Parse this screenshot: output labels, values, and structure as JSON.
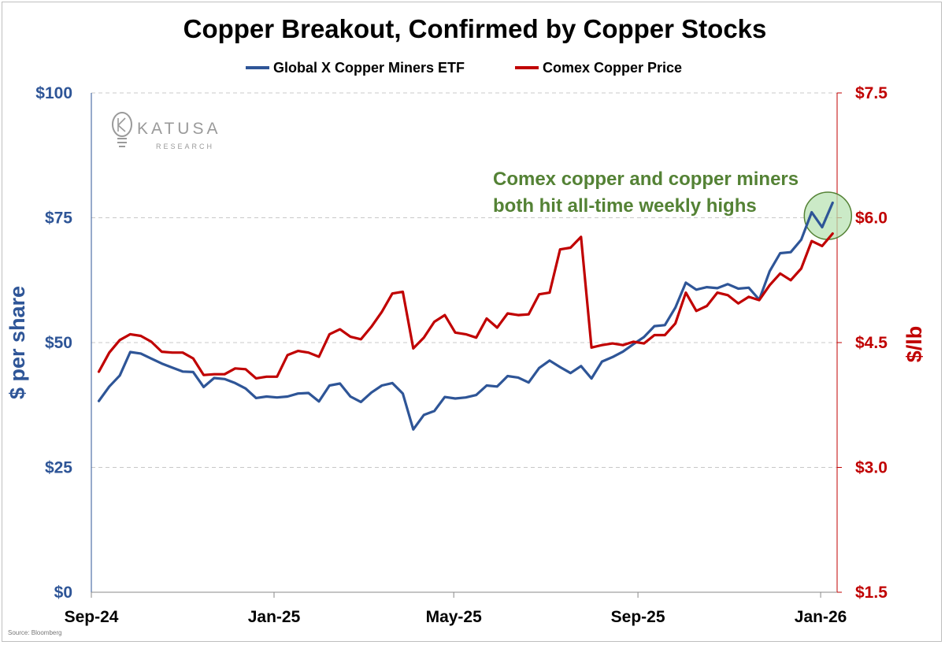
{
  "chart_data": {
    "type": "line",
    "title": "Copper Breakout, Confirmed by Copper Stocks",
    "legend": {
      "placement": "top-center",
      "entries": [
        "Global X Copper Miners ETF",
        "Comex Copper Price"
      ]
    },
    "x_axis": {
      "type": "weekly dates",
      "range": [
        "2024-09-06",
        "2026-01-09"
      ],
      "tick_labels": [
        "Sep-24",
        "Jan-25",
        "May-25",
        "Sep-25",
        "Jan-26"
      ],
      "tick_dates": [
        "2024-09-01",
        "2025-01-01",
        "2025-05-01",
        "2025-09-01",
        "2026-01-01"
      ]
    },
    "y_left": {
      "label": "$ per share",
      "range": [
        0,
        100
      ],
      "ticks": [
        0,
        25,
        50,
        75,
        100
      ],
      "tick_labels": [
        "$0",
        "$25",
        "$50",
        "$75",
        "$100"
      ]
    },
    "y_right": {
      "label": "$/lb",
      "range": [
        1.5,
        7.5
      ],
      "ticks": [
        1.5,
        3.0,
        4.5,
        6.0,
        7.5
      ],
      "tick_labels": [
        "$1.5",
        "$3.0",
        "$4.5",
        "$6.0",
        "$7.5"
      ]
    },
    "grid": "horizontal dashed",
    "series": [
      {
        "name": "Global X Copper Miners ETF",
        "axis": "left",
        "color": "#2e5597",
        "x": [
          "2024-09-06",
          "2024-09-13",
          "2024-09-20",
          "2024-09-27",
          "2024-10-04",
          "2024-10-11",
          "2024-10-18",
          "2024-10-25",
          "2024-11-01",
          "2024-11-08",
          "2024-11-15",
          "2024-11-22",
          "2024-11-29",
          "2024-12-06",
          "2024-12-13",
          "2024-12-20",
          "2024-12-27",
          "2025-01-03",
          "2025-01-10",
          "2025-01-17",
          "2025-01-24",
          "2025-01-31",
          "2025-02-07",
          "2025-02-14",
          "2025-02-21",
          "2025-02-28",
          "2025-03-07",
          "2025-03-14",
          "2025-03-21",
          "2025-03-28",
          "2025-04-04",
          "2025-04-11",
          "2025-04-18",
          "2025-04-25",
          "2025-05-02",
          "2025-05-09",
          "2025-05-16",
          "2025-05-23",
          "2025-05-30",
          "2025-06-06",
          "2025-06-13",
          "2025-06-20",
          "2025-06-27",
          "2025-07-04",
          "2025-07-11",
          "2025-07-18",
          "2025-07-25",
          "2025-08-01",
          "2025-08-08",
          "2025-08-15",
          "2025-08-22",
          "2025-08-29",
          "2025-09-05",
          "2025-09-12",
          "2025-09-19",
          "2025-09-26",
          "2025-10-03",
          "2025-10-10",
          "2025-10-17",
          "2025-10-24",
          "2025-10-31",
          "2025-11-07",
          "2025-11-14",
          "2025-11-21",
          "2025-11-28",
          "2025-12-05",
          "2025-12-12",
          "2025-12-19",
          "2025-12-26",
          "2026-01-02",
          "2026-01-09"
        ],
        "values": [
          38.3,
          41.2,
          43.4,
          48.1,
          47.8,
          46.8,
          45.8,
          45.0,
          44.2,
          44.1,
          41.1,
          42.9,
          42.7,
          41.9,
          40.8,
          38.9,
          39.2,
          39.0,
          39.2,
          39.8,
          39.9,
          38.2,
          41.4,
          41.8,
          39.2,
          38.1,
          40.0,
          41.4,
          41.9,
          39.8,
          32.6,
          35.5,
          36.3,
          39.1,
          38.8,
          39.0,
          39.5,
          41.4,
          41.2,
          43.3,
          43.0,
          42.0,
          44.9,
          46.4,
          45.1,
          43.9,
          45.3,
          42.8,
          46.2,
          47.1,
          48.2,
          49.7,
          51.1,
          53.3,
          53.5,
          57.0,
          62.0,
          60.6,
          61.1,
          60.9,
          61.7,
          60.8,
          61.0,
          58.6,
          64.3,
          67.9,
          68.1,
          70.6,
          76.1,
          73.1,
          78.0
        ]
      },
      {
        "name": "Comex Copper Price",
        "axis": "right",
        "color": "#c00000",
        "x": [
          "2024-09-06",
          "2024-09-13",
          "2024-09-20",
          "2024-09-27",
          "2024-10-04",
          "2024-10-11",
          "2024-10-18",
          "2024-10-25",
          "2024-11-01",
          "2024-11-08",
          "2024-11-15",
          "2024-11-22",
          "2024-11-29",
          "2024-12-06",
          "2024-12-13",
          "2024-12-20",
          "2024-12-27",
          "2025-01-03",
          "2025-01-10",
          "2025-01-17",
          "2025-01-24",
          "2025-01-31",
          "2025-02-07",
          "2025-02-14",
          "2025-02-21",
          "2025-02-28",
          "2025-03-07",
          "2025-03-14",
          "2025-03-21",
          "2025-03-28",
          "2025-04-04",
          "2025-04-11",
          "2025-04-18",
          "2025-04-25",
          "2025-05-02",
          "2025-05-09",
          "2025-05-16",
          "2025-05-23",
          "2025-05-30",
          "2025-06-06",
          "2025-06-13",
          "2025-06-20",
          "2025-06-27",
          "2025-07-04",
          "2025-07-11",
          "2025-07-18",
          "2025-07-25",
          "2025-08-01",
          "2025-08-08",
          "2025-08-15",
          "2025-08-22",
          "2025-08-29",
          "2025-09-05",
          "2025-09-12",
          "2025-09-19",
          "2025-09-26",
          "2025-10-03",
          "2025-10-10",
          "2025-10-17",
          "2025-10-24",
          "2025-10-31",
          "2025-11-07",
          "2025-11-14",
          "2025-11-21",
          "2025-11-28",
          "2025-12-05",
          "2025-12-12",
          "2025-12-19",
          "2025-12-26",
          "2026-01-02",
          "2026-01-09"
        ],
        "values": [
          4.15,
          4.38,
          4.53,
          4.6,
          4.58,
          4.51,
          4.39,
          4.38,
          4.38,
          4.31,
          4.11,
          4.12,
          4.12,
          4.19,
          4.18,
          4.07,
          4.09,
          4.09,
          4.35,
          4.4,
          4.38,
          4.33,
          4.6,
          4.66,
          4.57,
          4.54,
          4.69,
          4.87,
          5.09,
          5.11,
          4.43,
          4.56,
          4.75,
          4.83,
          4.62,
          4.6,
          4.56,
          4.79,
          4.68,
          4.85,
          4.83,
          4.84,
          5.08,
          5.1,
          5.62,
          5.64,
          5.77,
          4.44,
          4.47,
          4.49,
          4.47,
          4.51,
          4.49,
          4.59,
          4.59,
          4.73,
          5.1,
          4.88,
          4.94,
          5.1,
          5.07,
          4.97,
          5.05,
          5.01,
          5.19,
          5.33,
          5.25,
          5.39,
          5.72,
          5.66,
          5.81
        ]
      }
    ],
    "annotation": {
      "lines": [
        "Comex copper and copper miners",
        "both hit all-time weekly highs"
      ],
      "color": "#548235",
      "highlight": "circle around the latest values (Jan-26)"
    },
    "source": "Source: Bloomberg"
  },
  "logo": {
    "name": "KATUSA",
    "subtitle": "RESEARCH",
    "icon": "lightbulb-k-icon"
  },
  "colors": {
    "left_axis": "#2e5597",
    "right_axis": "#c00000",
    "annotation": "#548235",
    "highlight_fill": "#b9e3b4",
    "grid": "#c8c8c8"
  }
}
